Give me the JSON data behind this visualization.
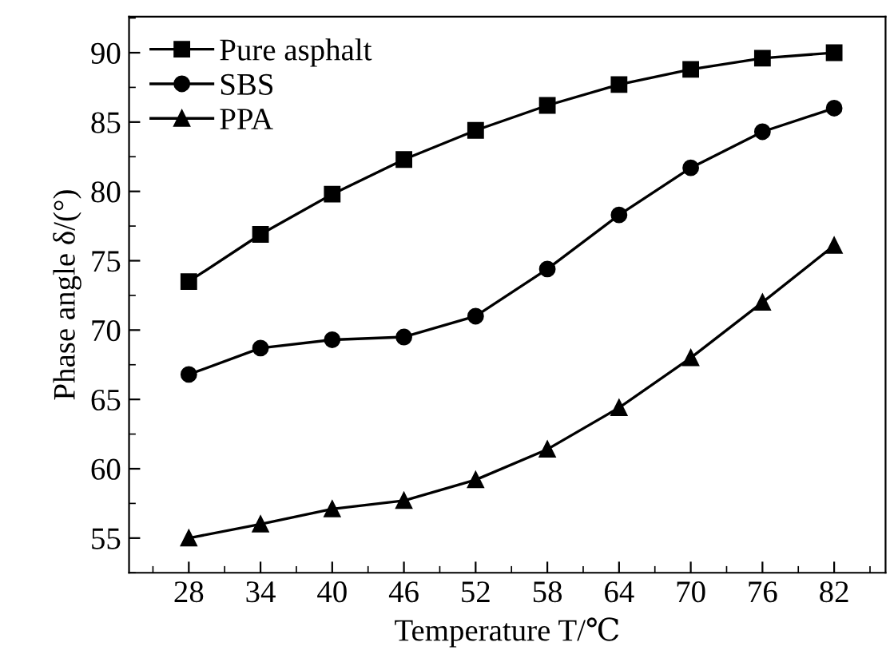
{
  "chart_data": {
    "type": "line",
    "xlabel": "Temperature T/℃",
    "ylabel": "Phase angle δ/(°)",
    "x": [
      28,
      34,
      40,
      46,
      52,
      58,
      64,
      70,
      76,
      82
    ],
    "series": [
      {
        "name": "Pure asphalt",
        "color": "#000000",
        "marker": "square",
        "values": [
          73.5,
          76.9,
          79.8,
          82.3,
          84.4,
          86.2,
          87.7,
          88.8,
          89.6,
          90.0
        ]
      },
      {
        "name": "SBS",
        "color": "#000000",
        "marker": "circle",
        "values": [
          66.8,
          68.7,
          69.3,
          69.5,
          71.0,
          74.4,
          78.3,
          81.7,
          84.3,
          86.0
        ]
      },
      {
        "name": "PPA",
        "color": "#000000",
        "marker": "triangle",
        "values": [
          55.0,
          56.0,
          57.1,
          57.7,
          59.2,
          61.4,
          64.4,
          68.0,
          72.0,
          76.1
        ]
      }
    ],
    "xlim": [
      23,
      86.3
    ],
    "xticks": [
      28,
      34,
      40,
      46,
      52,
      58,
      64,
      70,
      76,
      82
    ],
    "ylim": [
      52.5,
      92.6
    ],
    "yticks": [
      55,
      60,
      65,
      70,
      75,
      80,
      85,
      90
    ],
    "grid": false,
    "legend": "top left",
    "line_style": "solid"
  }
}
